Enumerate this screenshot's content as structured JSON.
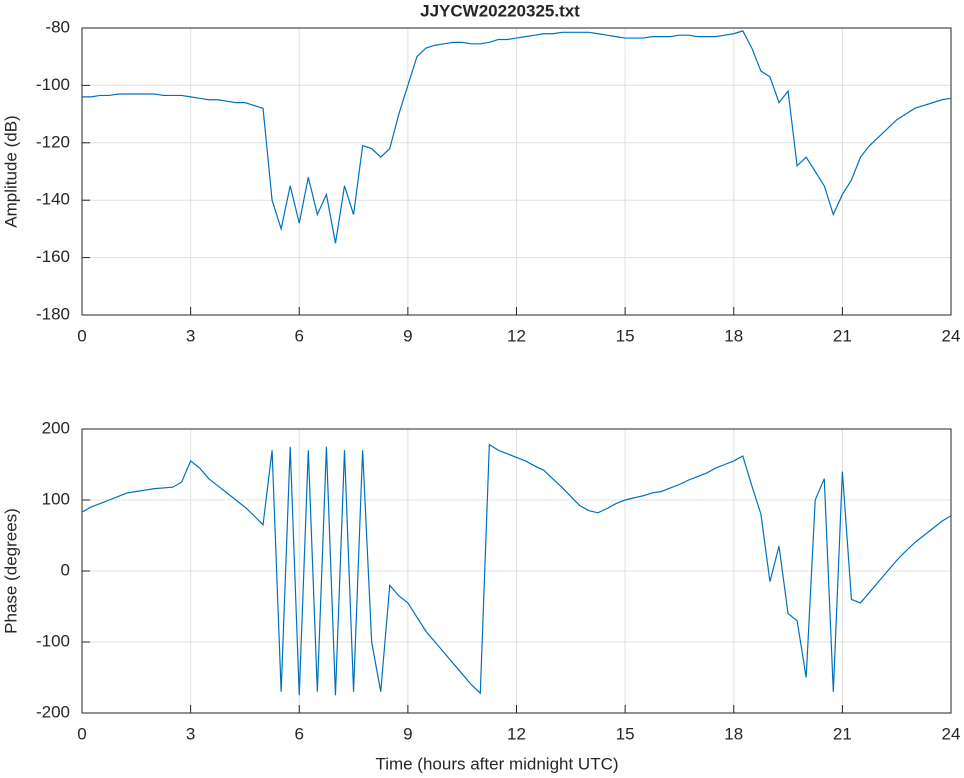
{
  "chart_data": [
    {
      "type": "line",
      "title": "JJYCW20220325.txt",
      "y_label": "Amplitude (dB)",
      "color": "#0072bd",
      "grid": true,
      "xlim": [
        0,
        24
      ],
      "xticks": [
        0,
        3,
        6,
        9,
        12,
        15,
        18,
        21,
        24
      ],
      "ylim": [
        -180,
        -80
      ],
      "yticks": [
        -180,
        -160,
        -140,
        -120,
        -100,
        -80
      ],
      "x": [
        0,
        0.25,
        0.5,
        0.75,
        1,
        1.25,
        1.5,
        1.75,
        2,
        2.25,
        2.5,
        2.75,
        3,
        3.25,
        3.5,
        3.75,
        4,
        4.25,
        4.5,
        4.75,
        5,
        5.25,
        5.5,
        5.75,
        6,
        6.25,
        6.5,
        6.75,
        7,
        7.25,
        7.5,
        7.75,
        8,
        8.25,
        8.5,
        8.75,
        9,
        9.25,
        9.5,
        9.75,
        10,
        10.25,
        10.5,
        10.75,
        11,
        11.25,
        11.5,
        11.75,
        12,
        12.25,
        12.5,
        12.75,
        13,
        13.25,
        13.5,
        13.75,
        14,
        14.25,
        14.5,
        14.75,
        15,
        15.25,
        15.5,
        15.75,
        16,
        16.25,
        16.5,
        16.75,
        17,
        17.25,
        17.5,
        17.75,
        18,
        18.25,
        18.5,
        18.75,
        19,
        19.25,
        19.5,
        19.75,
        20,
        20.25,
        20.5,
        20.75,
        21,
        21.25,
        21.5,
        21.75,
        22,
        22.25,
        22.5,
        22.75,
        23,
        23.25,
        23.5,
        23.75,
        24
      ],
      "values": [
        -104,
        -104,
        -103.5,
        -103.5,
        -103,
        -103,
        -103,
        -103,
        -103,
        -103.5,
        -103.5,
        -103.5,
        -104,
        -104.5,
        -105,
        -105,
        -105.5,
        -106,
        -106,
        -107,
        -108,
        -140,
        -150,
        -135,
        -148,
        -132,
        -145,
        -138,
        -155,
        -135,
        -145,
        -121,
        -122,
        -125,
        -122,
        -110,
        -100,
        -90,
        -87,
        -86,
        -85.5,
        -85,
        -85,
        -85.5,
        -85.5,
        -85,
        -84,
        -84,
        -83.5,
        -83,
        -82.5,
        -82,
        -82,
        -81.5,
        -81.5,
        -81.5,
        -81.5,
        -82,
        -82.5,
        -83,
        -83.5,
        -83.5,
        -83.5,
        -83,
        -83,
        -83,
        -82.5,
        -82.5,
        -83,
        -83,
        -83,
        -82.5,
        -82,
        -81,
        -87,
        -95,
        -97,
        -106,
        -102,
        -128,
        -125,
        -130,
        -135,
        -145,
        -138,
        -133,
        -125,
        -121,
        -118,
        -115,
        -112,
        -110,
        -108,
        -107,
        -106,
        -105,
        -104.5
      ]
    },
    {
      "type": "line",
      "x_label": "Time (hours after midnight UTC)",
      "y_label": "Phase (degrees)",
      "color": "#0072bd",
      "grid": true,
      "xlim": [
        0,
        24
      ],
      "xticks": [
        0,
        3,
        6,
        9,
        12,
        15,
        18,
        21,
        24
      ],
      "ylim": [
        -200,
        200
      ],
      "yticks": [
        -200,
        -100,
        0,
        100,
        200
      ],
      "x": [
        0,
        0.25,
        0.5,
        0.75,
        1,
        1.25,
        1.5,
        1.75,
        2,
        2.25,
        2.5,
        2.75,
        3,
        3.25,
        3.5,
        3.75,
        4,
        4.25,
        4.5,
        4.75,
        5,
        5.25,
        5.5,
        5.75,
        6,
        6.25,
        6.5,
        6.75,
        7,
        7.25,
        7.5,
        7.75,
        8,
        8.25,
        8.5,
        8.75,
        9,
        9.25,
        9.5,
        9.75,
        10,
        10.25,
        10.5,
        10.75,
        11,
        11.25,
        11.5,
        11.75,
        12,
        12.25,
        12.5,
        12.75,
        13,
        13.25,
        13.5,
        13.75,
        14,
        14.25,
        14.5,
        14.75,
        15,
        15.25,
        15.5,
        15.75,
        16,
        16.25,
        16.5,
        16.75,
        17,
        17.25,
        17.5,
        17.75,
        18,
        18.25,
        18.5,
        18.75,
        19,
        19.25,
        19.5,
        19.75,
        20,
        20.25,
        20.5,
        20.75,
        21,
        21.25,
        21.5,
        21.75,
        22,
        22.25,
        22.5,
        22.75,
        23,
        23.25,
        23.5,
        23.75,
        24
      ],
      "values": [
        83,
        90,
        95,
        100,
        105,
        110,
        112,
        114,
        116,
        117,
        118,
        125,
        155,
        145,
        130,
        120,
        110,
        100,
        90,
        78,
        65,
        170,
        -170,
        175,
        -175,
        170,
        -170,
        175,
        -175,
        170,
        -170,
        170,
        -100,
        -170,
        -20,
        -35,
        -45,
        -65,
        -85,
        -100,
        -115,
        -130,
        -145,
        -160,
        -172,
        178,
        170,
        165,
        160,
        155,
        148,
        142,
        130,
        118,
        105,
        92,
        85,
        82,
        88,
        95,
        100,
        103,
        106,
        110,
        112,
        117,
        122,
        128,
        133,
        138,
        145,
        150,
        155,
        162,
        120,
        80,
        -15,
        35,
        -60,
        -70,
        -150,
        100,
        130,
        -170,
        140,
        -40,
        -45,
        -30,
        -15,
        0,
        15,
        28,
        40,
        50,
        60,
        70,
        78
      ]
    }
  ]
}
